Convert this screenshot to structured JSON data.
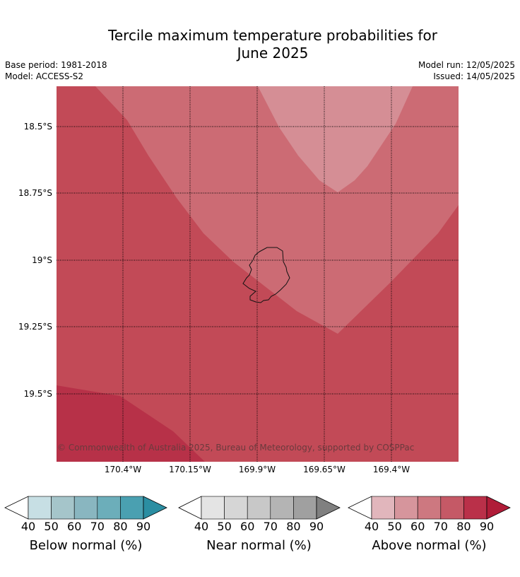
{
  "title": {
    "line1": "Tercile maximum temperature probabilities for",
    "line2": "June 2025"
  },
  "meta": {
    "base_period": "Base period: 1981-2018",
    "model": "Model: ACCESS-S2",
    "model_run": "Model run: 12/05/2025",
    "issued": "Issued: 14/05/2025"
  },
  "map": {
    "latitude_labels": [
      "18.5°S",
      "18.75°S",
      "19°S",
      "19.25°S",
      "19.5°S"
    ],
    "longitude_labels": [
      "170.4°W",
      "170.15°W",
      "169.9°W",
      "169.65°W",
      "169.4°W"
    ],
    "copyright": "© Commonwealth of Australia 2025, Bureau of Meteorology, supported by COSPPac",
    "gridlines": true,
    "feature": "island-outline",
    "zones": [
      {
        "category": "above",
        "probability_band": "80-90",
        "color": "#b73148"
      },
      {
        "category": "above",
        "probability_band": "70-80",
        "color": "#c24a57"
      },
      {
        "category": "above",
        "probability_band": "60-70",
        "color": "#cc6b74"
      },
      {
        "category": "above",
        "probability_band": "50-60",
        "color": "#d58e95"
      }
    ]
  },
  "colorbars": [
    {
      "label": "Below normal (%)",
      "ticks": [
        "40",
        "50",
        "60",
        "70",
        "80",
        "90"
      ],
      "colors": [
        "#c7dfe4",
        "#a5c5ca",
        "#89b6c0",
        "#6caeba",
        "#4aa0b1",
        "#2b8ea2"
      ]
    },
    {
      "label": "Near normal (%)",
      "ticks": [
        "40",
        "50",
        "60",
        "70",
        "80",
        "90"
      ],
      "colors": [
        "#e4e4e4",
        "#d6d6d6",
        "#c8c8c8",
        "#b4b4b4",
        "#a0a0a0",
        "#808080"
      ]
    },
    {
      "label": "Above normal (%)",
      "ticks": [
        "40",
        "50",
        "60",
        "70",
        "80",
        "90"
      ],
      "colors": [
        "#e1b6bc",
        "#d6959c",
        "#cd7880",
        "#c55966",
        "#ba3049",
        "#b01c38"
      ]
    }
  ]
}
